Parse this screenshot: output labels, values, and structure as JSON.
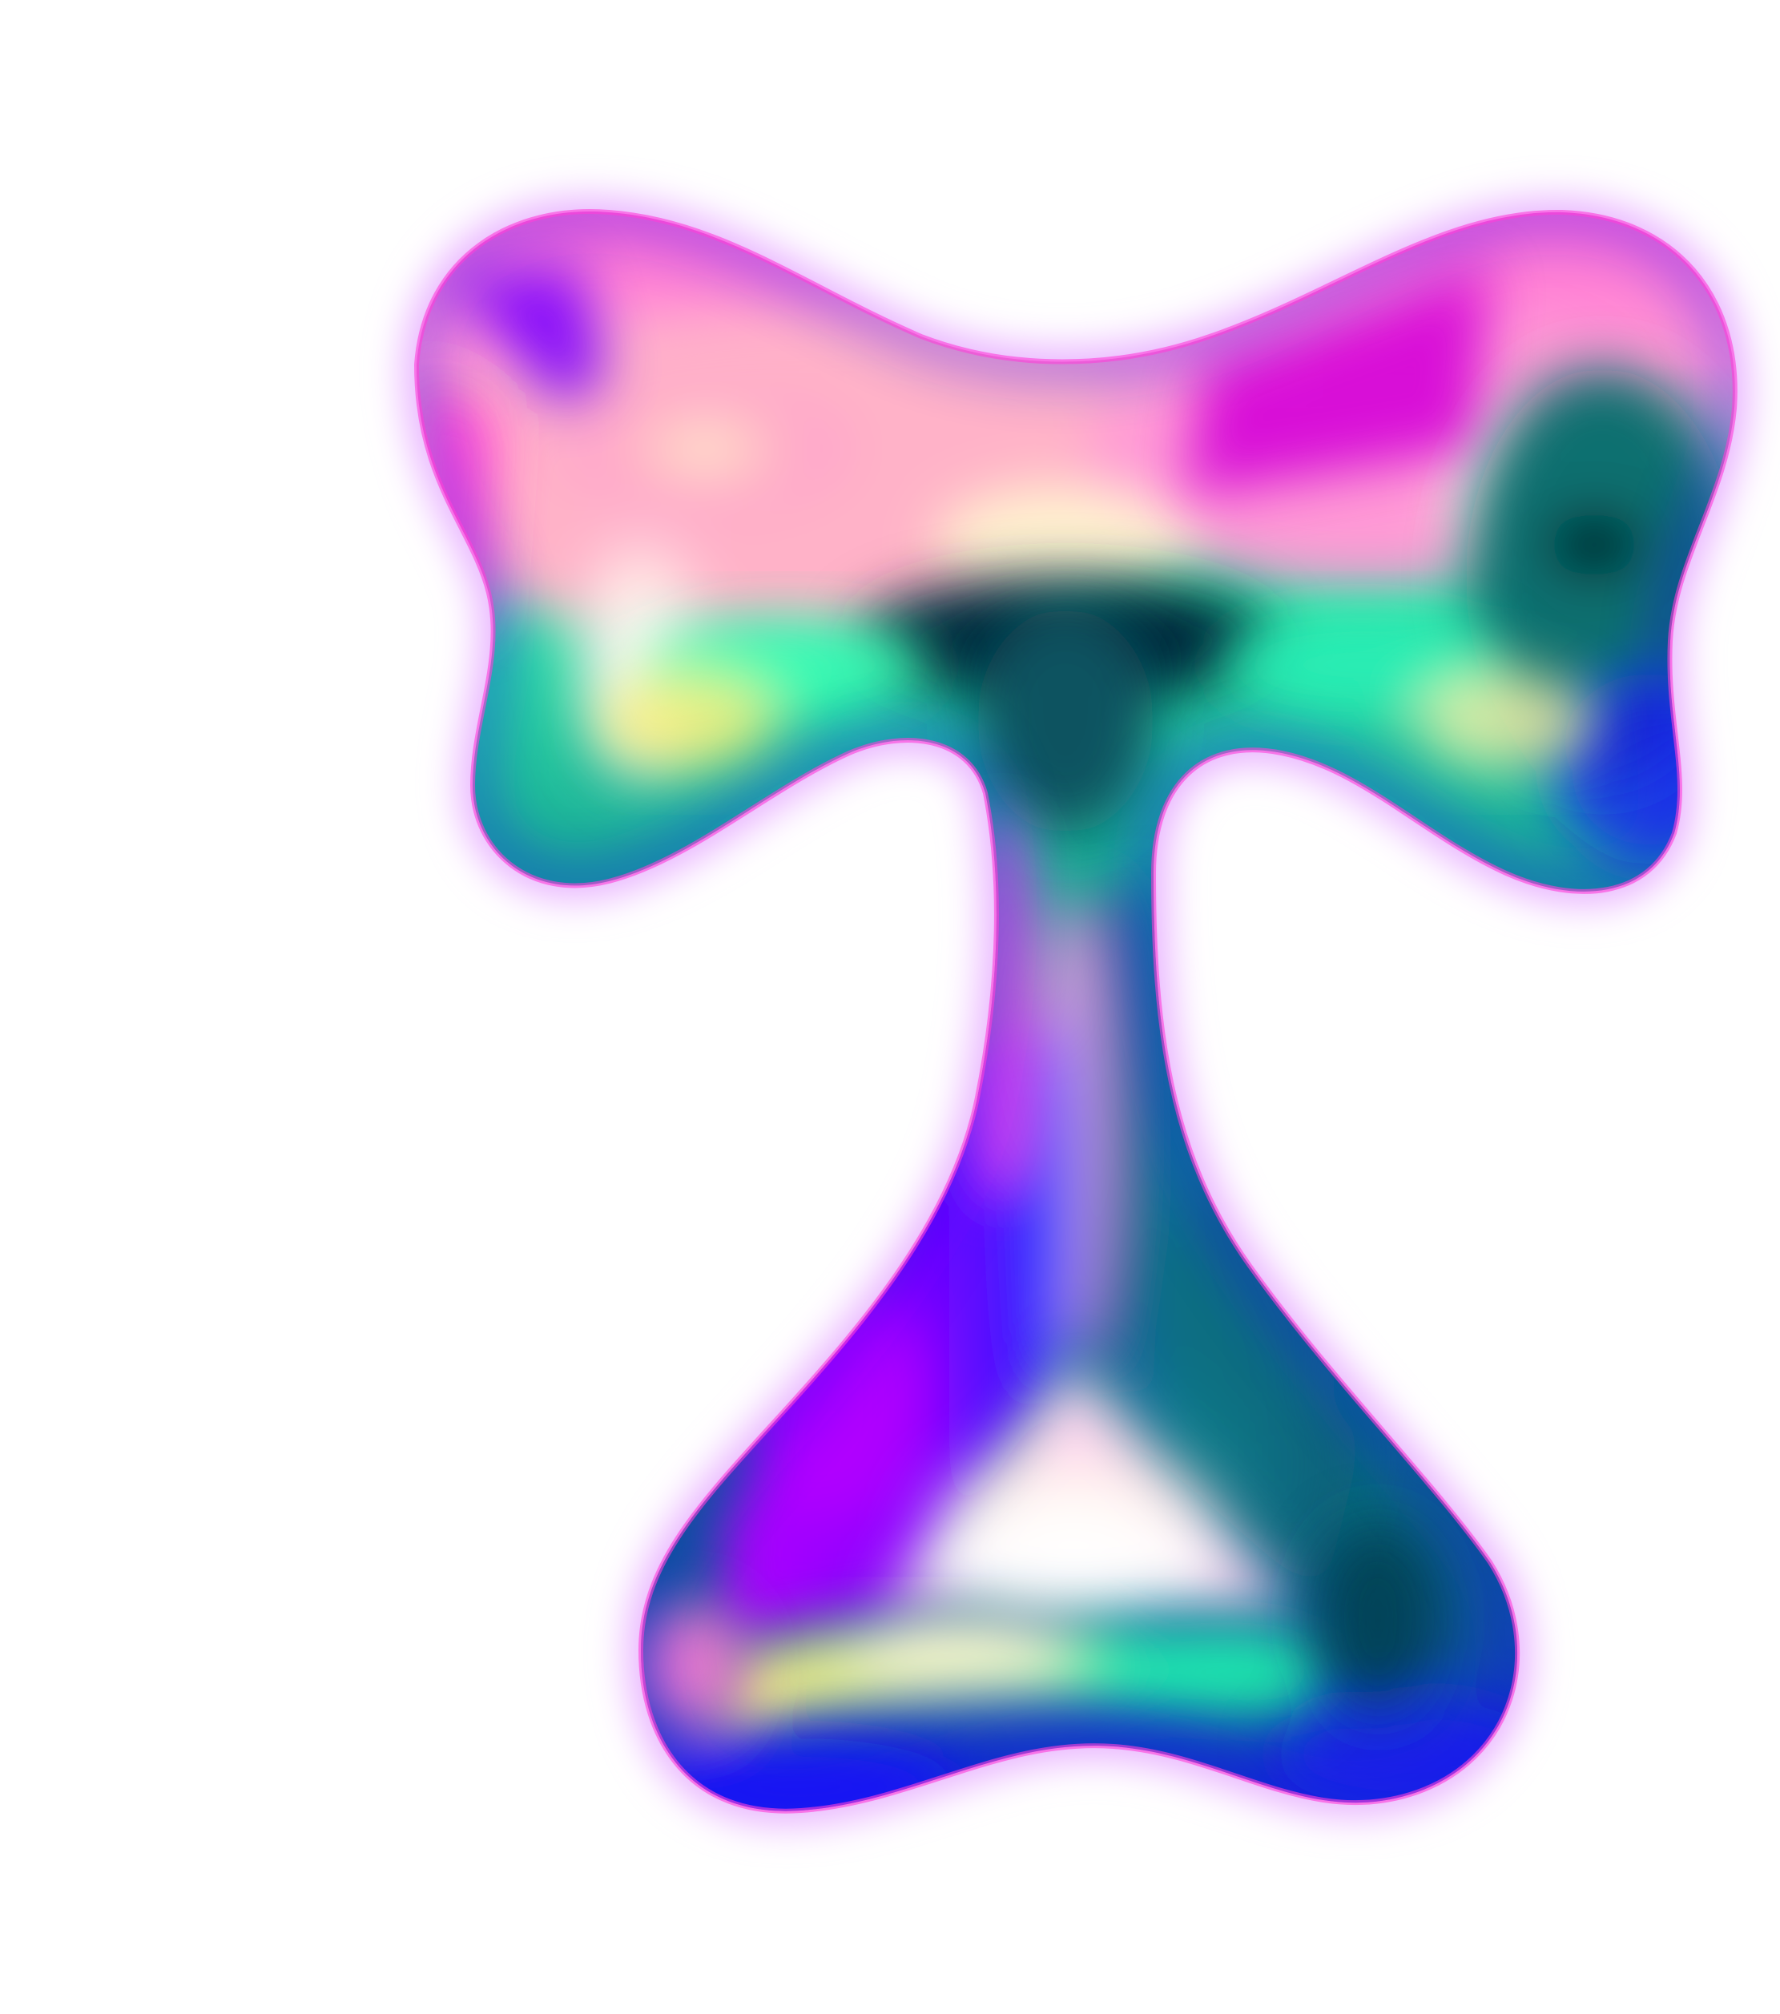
{
  "artwork": {
    "subject": "glyph-t-icon",
    "background": "#ffffff",
    "palette": {
      "magenta": "#ff2bd6",
      "pink": "#ff9ad5",
      "pale_yellow": "#fffbd0",
      "mint": "#23f5b0",
      "teal": "#0f8a8c",
      "deep_teal": "#05404e",
      "blue": "#1a10ff",
      "violet": "#8b00ff",
      "glow": "#d99cff"
    }
  }
}
